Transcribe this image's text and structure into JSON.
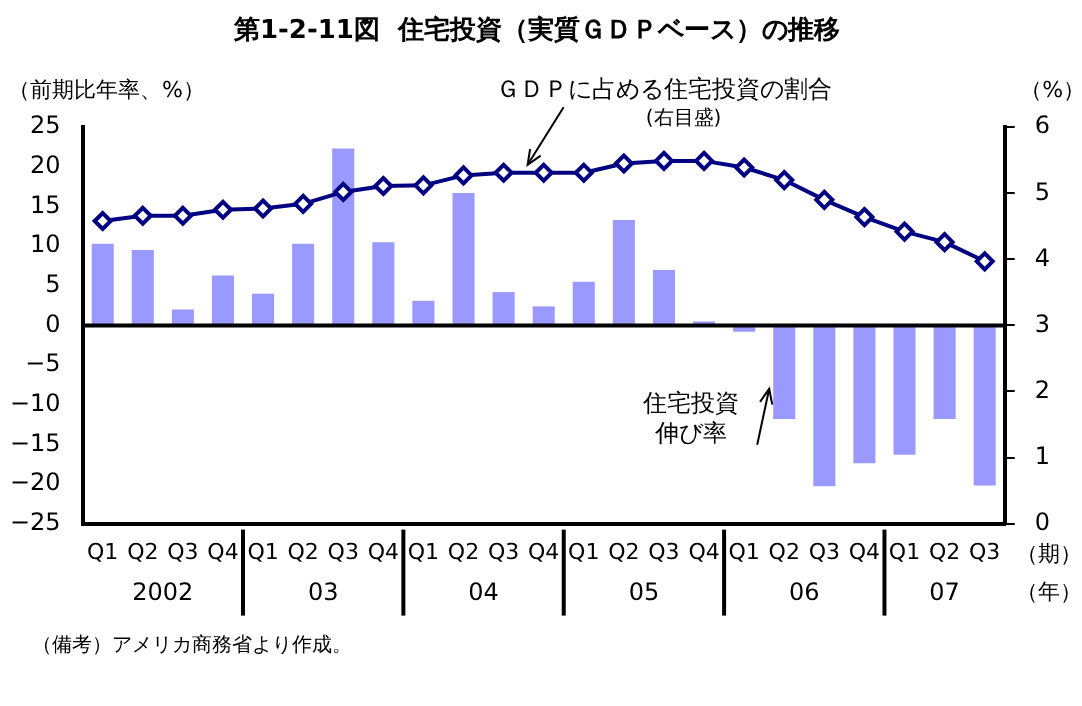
{
  "chart_data": {
    "type": "bar",
    "title": "第1-2-11図  住宅投資（実質ＧＤＰベース）の推移",
    "ylabel": "（前期比年率、%）",
    "y2label": "（%）",
    "xlabel": "（期）（年）",
    "categories": [
      "Q1",
      "Q2",
      "Q3",
      "Q4",
      "Q1",
      "Q2",
      "Q3",
      "Q4",
      "Q1",
      "Q2",
      "Q3",
      "Q4",
      "Q1",
      "Q2",
      "Q3",
      "Q4",
      "Q1",
      "Q2",
      "Q3",
      "Q4",
      "Q1",
      "Q2",
      "Q3"
    ],
    "series": [
      {
        "name": "住宅投資伸び率",
        "color": "#9999ff",
        "values": [
          10.3,
          9.5,
          2.0,
          6.3,
          4.0,
          10.3,
          22.3,
          10.5,
          3.1,
          16.7,
          4.2,
          2.4,
          5.5,
          13.3,
          7.0,
          0.5,
          -0.8,
          -11.8,
          -20.3,
          -17.4,
          -16.3,
          -11.8,
          -20.2
        ]
      },
      {
        "name": "ＧＤＰに占める住宅投資の割合",
        "type": "line",
        "axis": "y2",
        "color": "#000080",
        "marker": "diamond",
        "values": [
          4.58,
          4.66,
          4.66,
          4.75,
          4.77,
          4.84,
          5.02,
          5.11,
          5.12,
          5.27,
          5.31,
          5.31,
          5.31,
          5.45,
          5.49,
          5.49,
          5.39,
          5.2,
          4.9,
          4.64,
          4.42,
          4.26,
          3.97
        ]
      }
    ],
    "annotations": [
      "(右目盛)",
      "（備考）アメリカ商務省より作成。",
      "2002",
      "03",
      "04",
      "05",
      "06",
      "07"
    ],
    "ylim": [
      -25,
      25
    ],
    "yticks": [
      -25,
      -20,
      -15,
      -10,
      -5,
      0,
      5,
      10,
      15,
      20,
      25
    ],
    "y2lim": [
      0,
      6
    ],
    "y2ticks": [
      0,
      1,
      2,
      3,
      4,
      5,
      6
    ],
    "ref_lines": [
      {
        "axis": "y",
        "value": 0,
        "color": "#000000"
      }
    ],
    "grid": false
  }
}
